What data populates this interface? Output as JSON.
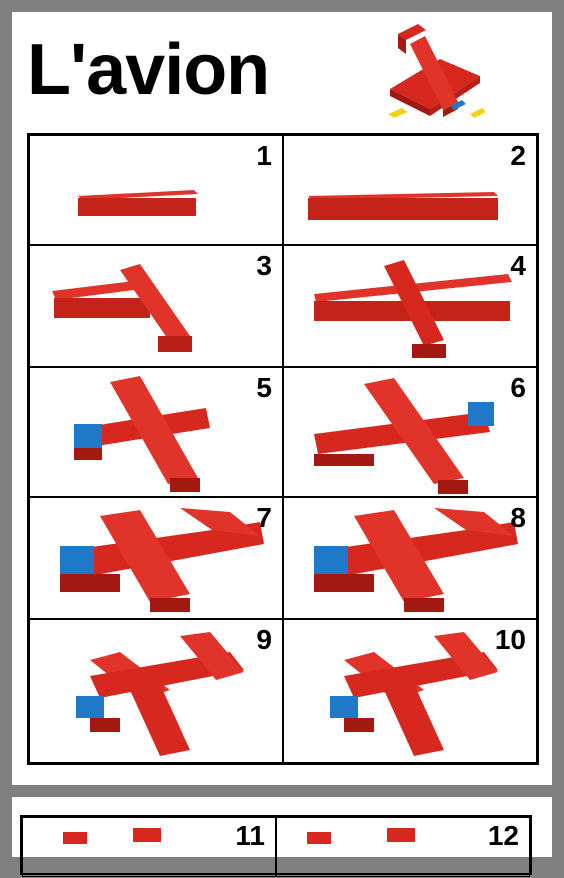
{
  "title": "L'avion",
  "steps": [
    "1",
    "2",
    "3",
    "4",
    "5",
    "6",
    "7",
    "8",
    "9",
    "10"
  ],
  "next_steps": [
    "11",
    "12"
  ],
  "colors": {
    "brick_red": "#d6281e",
    "brick_dark": "#a31810",
    "brick_blue": "#1f78c8",
    "brick_yellow": "#f2d21a"
  }
}
